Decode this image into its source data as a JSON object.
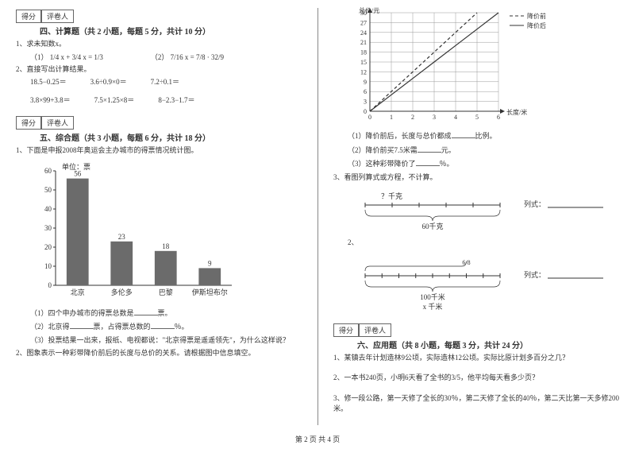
{
  "page_footer": "第 2 页 共 4 页",
  "score_labels": {
    "score": "得分",
    "grader": "评卷人"
  },
  "left": {
    "sec4": {
      "title": "四、计算题（共 2 小题，每题 5 分，共计 10 分）",
      "q1": "1、求未知数x。",
      "q1_a": "（1）  1/4 x + 3/4 x = 1/3",
      "q1_b": "（2）  7/16 x = 7/8 · 32/9",
      "q2": "2、直接写出计算结果。",
      "q2_row1a": "18.5−0.25＝",
      "q2_row1b": "3.6÷0.9×0＝",
      "q2_row1c": "7.2÷0.1＝",
      "q2_row2a": "3.8×99+3.8＝",
      "q2_row2b": "7.5×1.25×8＝",
      "q2_row2c": "8−2.3−1.7＝"
    },
    "sec5": {
      "title": "五、综合题（共 3 小题，每题 6 分，共计 18 分）",
      "q1": "1、下面是申报2008年奥运会主办城市的得票情况统计图。",
      "chart": {
        "type": "bar",
        "unit_label": "单位：票",
        "categories": [
          "北京",
          "多伦多",
          "巴黎",
          "伊斯坦布尔"
        ],
        "values": [
          56,
          23,
          18,
          9
        ],
        "bar_color": "#6b6b6b",
        "ylim": [
          0,
          60
        ],
        "ytick_step": 10,
        "tick_fontsize": 9,
        "label_fontsize": 9,
        "bg": "#ffffff",
        "axis_color": "#333333"
      },
      "p1": "（1）四个申办城市的得票总数是",
      "p1b": "票。",
      "p2": "（2）北京得",
      "p2b": "票，占得票总数的",
      "p2c": "％。",
      "p3": "（3）投票结果一出来，报纸、电视都说：\"北京得票是遥遥领先\"，为什么这样说？",
      "q2": "2、图象表示一种彩带降价前后的长度与总价的关系。请根据图中信息填空。"
    }
  },
  "right": {
    "linechart": {
      "type": "line",
      "xlabel": "长度/米",
      "ylabel": "总价/元",
      "legend": [
        "降价前",
        "降价后"
      ],
      "xlim": [
        0,
        6
      ],
      "xtick_step": 1,
      "ylim": [
        0,
        30
      ],
      "ytick_step": 3,
      "series1": {
        "points": [
          [
            0,
            0
          ],
          [
            1,
            6
          ],
          [
            2,
            12
          ],
          [
            3,
            18
          ],
          [
            4,
            24
          ],
          [
            5,
            30
          ]
        ],
        "dash": "4,3",
        "color": "#333"
      },
      "series2": {
        "points": [
          [
            0,
            0
          ],
          [
            1,
            5
          ],
          [
            2,
            10
          ],
          [
            3,
            15
          ],
          [
            4,
            20
          ],
          [
            5,
            25
          ],
          [
            6,
            30
          ]
        ],
        "dash": "none",
        "color": "#333"
      },
      "grid_color": "#999",
      "bg": "#ffffff"
    },
    "lp1": "（1）降价前后，长度与总价都成",
    "lp1b": "比例。",
    "lp2": "（2）降价前买7.5米需",
    "lp2b": "元。",
    "lp3": "（3）这种彩带降价了",
    "lp3b": "％。",
    "q3": "3、看图列算式或方程，不计算。",
    "seg1": {
      "q_label": "？千克",
      "total_label": "60千克",
      "answer_label": "列式："
    },
    "seg2": {
      "frac_label": "6/8",
      "total_label": "100千米",
      "x_label": "x 千米",
      "answer_label": "列式："
    },
    "sec6": {
      "title": "六、应用题（共 8 小题，每题 3 分，共计 24 分）",
      "q1": "1、某镇去年计划造林9公顷，实际造林12公顷。实际比原计划多百分之几？",
      "q2": "2、一本书240页，小明6天看了全书的3/5，他平均每天看多少页？",
      "q3": "3、修一段公路，第一天修了全长的30％，第二天修了全长的40％，第二天比第一天多修200米。"
    }
  }
}
